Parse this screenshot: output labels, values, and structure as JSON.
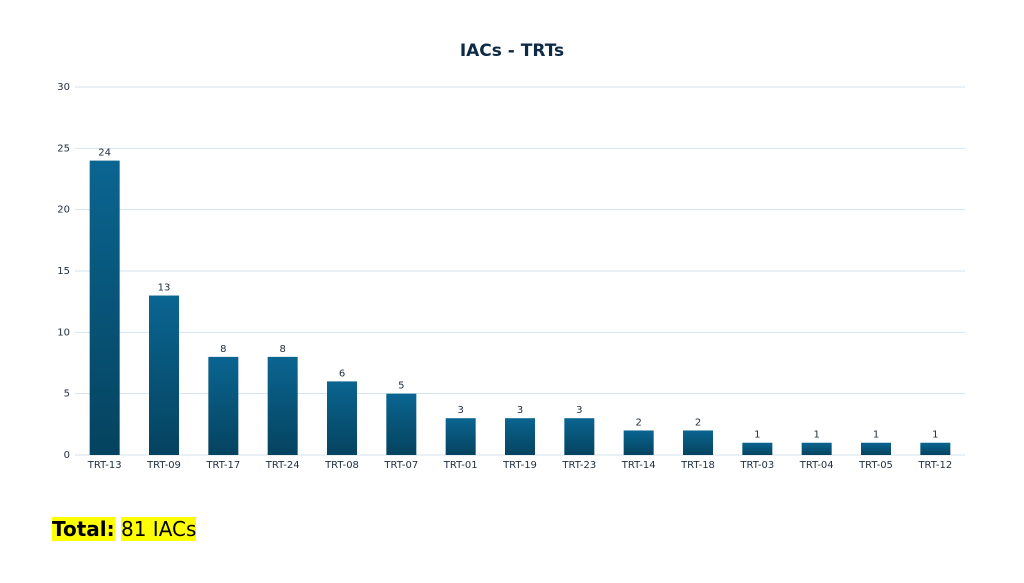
{
  "chart_data": {
    "type": "bar",
    "title": "IACs - TRTs",
    "categories": [
      "TRT-13",
      "TRT-09",
      "TRT-17",
      "TRT-24",
      "TRT-08",
      "TRT-07",
      "TRT-01",
      "TRT-19",
      "TRT-23",
      "TRT-14",
      "TRT-18",
      "TRT-03",
      "TRT-04",
      "TRT-05",
      "TRT-12"
    ],
    "values": [
      24,
      13,
      8,
      8,
      6,
      5,
      3,
      3,
      3,
      2,
      2,
      1,
      1,
      1,
      1
    ],
    "color": "#0a6591",
    "ylim": [
      0,
      30
    ],
    "yticks": [
      0,
      5,
      10,
      15,
      20,
      25,
      30
    ],
    "grid": true
  },
  "footer": {
    "label": "Total:",
    "text": "81 IACs"
  }
}
